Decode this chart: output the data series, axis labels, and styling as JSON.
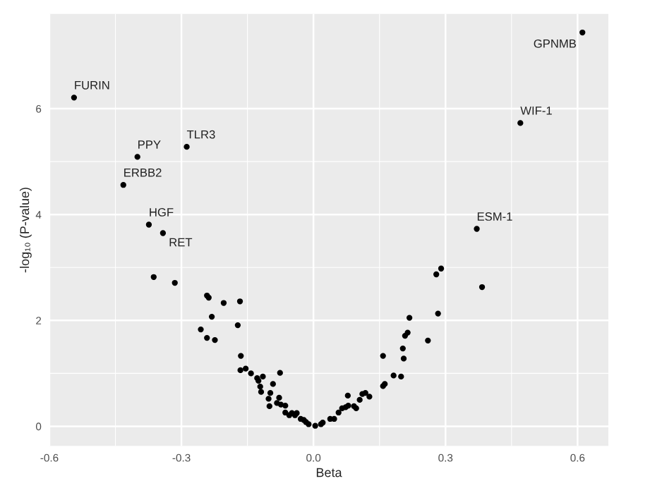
{
  "chart_data": {
    "type": "scatter",
    "xlabel": "Beta",
    "ylabel": "-log₁₀ (P-value)",
    "xlim": [
      -0.6,
      0.67
    ],
    "ylim": [
      -0.37,
      7.79
    ],
    "xticks": [
      -0.6,
      -0.3,
      {
        "value": 0,
        "label": "0.0"
      },
      0.3,
      0.6
    ],
    "yticks": [
      0,
      2,
      4,
      6
    ],
    "grid": true,
    "marker": "circle",
    "series": [
      {
        "color": "#000000",
        "x": [
          -0.544,
          -0.4,
          -0.288,
          -0.432,
          -0.374,
          -0.342,
          0.611,
          0.47,
          0.371,
          -0.363,
          -0.315,
          -0.242,
          -0.238,
          -0.204,
          -0.167,
          -0.231,
          -0.172,
          -0.256,
          -0.242,
          -0.224,
          -0.165,
          -0.166,
          -0.154,
          -0.142,
          -0.076,
          -0.128,
          -0.125,
          -0.115,
          -0.121,
          -0.119,
          -0.092,
          -0.098,
          -0.102,
          -0.1,
          -0.078,
          -0.083,
          -0.074,
          -0.064,
          -0.064,
          -0.055,
          -0.049,
          -0.042,
          -0.038,
          -0.029,
          -0.022,
          -0.017,
          -0.011,
          0.004,
          0.017,
          0.021,
          0.038,
          0.047,
          0.057,
          0.065,
          0.073,
          0.079,
          0.078,
          0.092,
          0.097,
          0.105,
          0.111,
          0.118,
          0.127,
          0.158,
          0.162,
          0.158,
          0.182,
          0.199,
          0.205,
          0.203,
          0.208,
          0.214,
          0.218,
          0.26,
          0.283,
          0.279,
          0.29,
          0.383
        ],
        "values": [
          6.21,
          5.09,
          5.28,
          4.56,
          3.81,
          3.65,
          7.44,
          5.73,
          3.73,
          2.82,
          2.71,
          2.47,
          2.43,
          2.33,
          2.36,
          2.07,
          1.91,
          1.83,
          1.67,
          1.63,
          1.33,
          1.06,
          1.09,
          1.0,
          1.01,
          0.91,
          0.86,
          0.94,
          0.75,
          0.65,
          0.8,
          0.63,
          0.52,
          0.38,
          0.54,
          0.44,
          0.41,
          0.39,
          0.26,
          0.21,
          0.25,
          0.21,
          0.25,
          0.14,
          0.12,
          0.08,
          0.04,
          0.01,
          0.04,
          0.07,
          0.14,
          0.14,
          0.26,
          0.34,
          0.36,
          0.39,
          0.58,
          0.38,
          0.34,
          0.5,
          0.61,
          0.63,
          0.56,
          0.76,
          0.8,
          1.33,
          0.96,
          0.94,
          1.28,
          1.47,
          1.71,
          1.77,
          2.05,
          1.62,
          2.13,
          2.87,
          2.98,
          2.63
        ]
      }
    ],
    "annotations": [
      {
        "text": "FURIN",
        "x": -0.544,
        "y": 6.21
      },
      {
        "text": "PPY",
        "x": -0.4,
        "y": 5.09
      },
      {
        "text": "TLR3",
        "x": -0.288,
        "y": 5.28
      },
      {
        "text": "ERBB2",
        "x": -0.432,
        "y": 4.56
      },
      {
        "text": "HGF",
        "x": -0.374,
        "y": 3.81
      },
      {
        "text": "RET",
        "x": -0.342,
        "y": 3.65
      },
      {
        "text": "GPNMB",
        "x": 0.611,
        "y": 7.44
      },
      {
        "text": "WIF-1",
        "x": 0.47,
        "y": 5.73
      },
      {
        "text": "ESM-1",
        "x": 0.371,
        "y": 3.73
      }
    ]
  }
}
